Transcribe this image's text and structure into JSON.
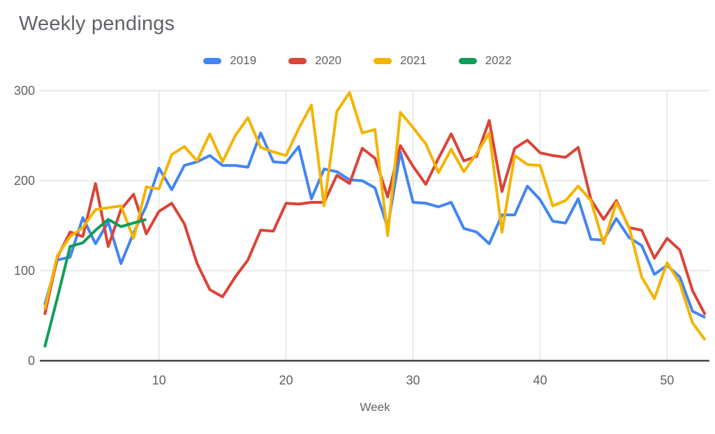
{
  "title": "Weekly pendings",
  "chart_data": {
    "type": "line",
    "title": "Weekly pendings",
    "xlabel": "Week",
    "ylabel": "",
    "xlim": [
      1,
      53
    ],
    "ylim": [
      0,
      300
    ],
    "xticks": [
      10,
      20,
      30,
      40,
      50
    ],
    "yticks": [
      0,
      100,
      200,
      300
    ],
    "grid": true,
    "legend_position": "top",
    "axis_text_color": "#616161",
    "gridline_color": "#e3e3e3",
    "axis_line_color": "#424242",
    "x": [
      1,
      2,
      3,
      4,
      5,
      6,
      7,
      8,
      9,
      10,
      11,
      12,
      13,
      14,
      15,
      16,
      17,
      18,
      19,
      20,
      21,
      22,
      23,
      24,
      25,
      26,
      27,
      28,
      29,
      30,
      31,
      32,
      33,
      34,
      35,
      36,
      37,
      38,
      39,
      40,
      41,
      42,
      43,
      44,
      45,
      46,
      47,
      48,
      49,
      50,
      51,
      52,
      53
    ],
    "series": [
      {
        "name": "2019",
        "color": "#4285F4",
        "values": [
          62,
          112,
          115,
          159,
          130,
          154,
          108,
          142,
          172,
          214,
          190,
          217,
          221,
          228,
          217,
          217,
          215,
          253,
          221,
          220,
          238,
          180,
          213,
          210,
          201,
          200,
          192,
          148,
          232,
          176,
          175,
          171,
          176,
          147,
          143,
          130,
          162,
          162,
          194,
          179,
          155,
          153,
          180,
          135,
          134,
          158,
          137,
          128,
          96,
          106,
          93,
          55,
          48
        ]
      },
      {
        "name": "2020",
        "color": "#DB4437",
        "values": [
          51,
          115,
          143,
          138,
          197,
          127,
          168,
          185,
          141,
          166,
          175,
          152,
          108,
          79,
          71,
          93,
          112,
          145,
          144,
          175,
          174,
          176,
          176,
          206,
          197,
          236,
          225,
          182,
          239,
          216,
          196,
          225,
          252,
          222,
          227,
          267,
          188,
          236,
          245,
          231,
          228,
          226,
          237,
          179,
          157,
          178,
          148,
          145,
          114,
          136,
          123,
          78,
          51
        ]
      },
      {
        "name": "2021",
        "color": "#F4B400",
        "values": [
          57,
          117,
          138,
          148,
          168,
          170,
          172,
          136,
          193,
          191,
          229,
          238,
          222,
          252,
          221,
          250,
          270,
          237,
          232,
          228,
          258,
          284,
          172,
          277,
          298,
          253,
          257,
          139,
          276,
          259,
          241,
          209,
          235,
          210,
          230,
          253,
          143,
          228,
          218,
          217,
          172,
          178,
          194,
          178,
          130,
          176,
          149,
          93,
          69,
          109,
          86,
          42,
          23
        ]
      },
      {
        "name": "2022",
        "color": "#0F9D58",
        "values": [
          15,
          70,
          127,
          131,
          145,
          157,
          149,
          153,
          157
        ]
      }
    ]
  }
}
